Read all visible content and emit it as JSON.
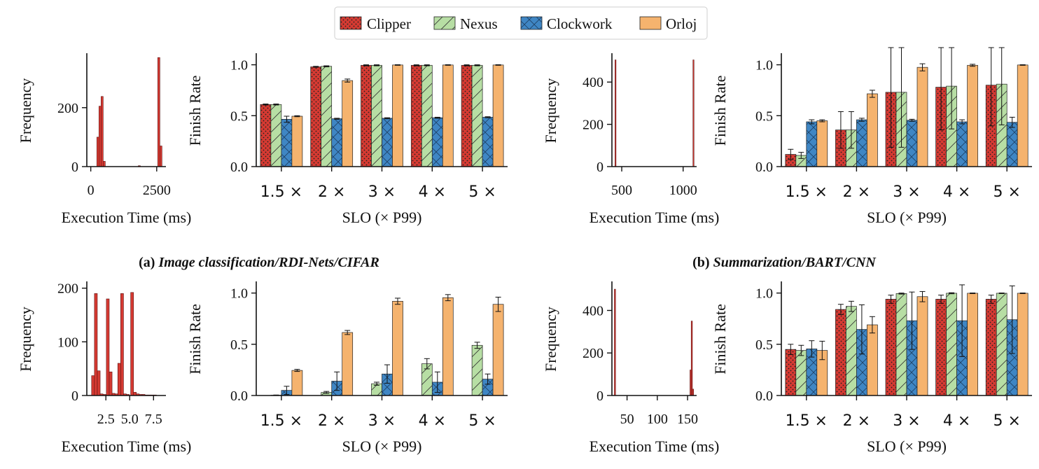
{
  "legend": {
    "items": [
      {
        "name": "Clipper",
        "color": "#d63a32",
        "pattern": "dots"
      },
      {
        "name": "Nexus",
        "color": "#b7dea4",
        "pattern": "slash"
      },
      {
        "name": "Clockwork",
        "color": "#3f86c4",
        "pattern": "cross"
      },
      {
        "name": "Orloj",
        "color": "#f5b36e",
        "pattern": "none"
      }
    ]
  },
  "captions": {
    "a": {
      "prefix": "(a) ",
      "text": "Image classification/RDI-Nets/CIFAR"
    },
    "b": {
      "prefix": "(b) ",
      "text": "Summarization/BART/CNN"
    }
  },
  "chart_data": [
    {
      "type": "bar",
      "panel": "a-hist",
      "ylabel": "Frequency",
      "xlabel": "Execution Time (ms)",
      "xlim": [
        -150,
        2850
      ],
      "ylim": [
        0,
        380
      ],
      "xticks": [
        0,
        2500
      ],
      "xtick_labels": [
        "0",
        "2500"
      ],
      "yticks": [
        0,
        200
      ],
      "bins": [
        [
          230,
          310,
          100
        ],
        [
          310,
          390,
          205
        ],
        [
          390,
          470,
          238
        ],
        [
          470,
          550,
          18
        ],
        [
          1800,
          1880,
          3
        ],
        [
          2540,
          2620,
          370
        ],
        [
          2620,
          2700,
          70
        ]
      ]
    },
    {
      "type": "bar",
      "panel": "a-finish",
      "ylabel": "Finish Rate",
      "xlabel": "SLO (× P99)",
      "categories": [
        "1.5 ×",
        "2 ×",
        "3 ×",
        "4 ×",
        "5 ×"
      ],
      "ylim": [
        0,
        1.1
      ],
      "yticks": [
        "0.0",
        "0.5",
        "1.0"
      ],
      "series": [
        {
          "name": "Clipper",
          "values": [
            0.61,
            0.98,
            0.995,
            0.995,
            0.995
          ],
          "err": [
            0.005,
            0.005,
            0.005,
            0.005,
            0.005
          ]
        },
        {
          "name": "Nexus",
          "values": [
            0.61,
            0.985,
            0.995,
            0.995,
            0.995
          ],
          "err": [
            0.005,
            0.005,
            0.005,
            0.005,
            0.005
          ]
        },
        {
          "name": "Clockwork",
          "values": [
            0.465,
            0.47,
            0.475,
            0.48,
            0.485
          ],
          "err": [
            0.03,
            0.005,
            0.005,
            0.005,
            0.005
          ]
        },
        {
          "name": "Orloj",
          "values": [
            0.495,
            0.845,
            0.998,
            0.998,
            0.998
          ],
          "err": [
            0.005,
            0.015,
            0.003,
            0.003,
            0.003
          ]
        }
      ]
    },
    {
      "type": "bar",
      "panel": "b-hist",
      "ylabel": "Frequency",
      "xlabel": "Execution Time (ms)",
      "xlim": [
        420,
        1110
      ],
      "ylim": [
        0,
        530
      ],
      "xticks": [
        500,
        1000
      ],
      "xtick_labels": [
        "500",
        "1000"
      ],
      "yticks": [
        0,
        200,
        400
      ],
      "bins": [
        [
          445,
          452,
          505
        ],
        [
          1080,
          1087,
          505
        ]
      ]
    },
    {
      "type": "bar",
      "panel": "b-finish",
      "ylabel": "Finish Rate",
      "xlabel": "SLO (× P99)",
      "categories": [
        "1.5 ×",
        "2 ×",
        "3 ×",
        "4 ×",
        "5 ×"
      ],
      "ylim": [
        0,
        1.1
      ],
      "yticks": [
        "0.0",
        "0.5",
        "1.0"
      ],
      "series": [
        {
          "name": "Clipper",
          "values": [
            0.12,
            0.36,
            0.73,
            0.78,
            0.8
          ],
          "err": [
            0.05,
            0.18,
            0.54,
            0.42,
            0.4
          ]
        },
        {
          "name": "Nexus",
          "values": [
            0.11,
            0.36,
            0.73,
            0.79,
            0.81
          ],
          "err": [
            0.03,
            0.18,
            0.54,
            0.42,
            0.4
          ]
        },
        {
          "name": "Clockwork",
          "values": [
            0.44,
            0.46,
            0.455,
            0.44,
            0.435
          ],
          "err": [
            0.02,
            0.015,
            0.01,
            0.02,
            0.05
          ]
        },
        {
          "name": "Orloj",
          "values": [
            0.45,
            0.715,
            0.975,
            0.995,
            0.998
          ],
          "err": [
            0.01,
            0.035,
            0.035,
            0.01,
            0.003
          ]
        }
      ]
    },
    {
      "type": "bar",
      "panel": "c-hist",
      "ylabel": "Frequency",
      "xlabel": "Execution Time (ms)",
      "xlim": [
        0.5,
        8.8
      ],
      "ylim": [
        0,
        210
      ],
      "xticks": [
        2.5,
        5.0,
        7.5
      ],
      "xtick_labels": [
        "2.5",
        "5.0",
        "7.5"
      ],
      "yticks": [
        0,
        100,
        200
      ],
      "bins": [
        [
          1.0,
          1.3,
          37
        ],
        [
          1.3,
          1.6,
          190
        ],
        [
          1.6,
          1.9,
          46
        ],
        [
          1.9,
          2.2,
          3
        ],
        [
          2.2,
          2.5,
          2
        ],
        [
          2.55,
          2.85,
          180
        ],
        [
          2.85,
          3.15,
          44
        ],
        [
          3.15,
          3.45,
          4
        ],
        [
          3.45,
          3.75,
          3
        ],
        [
          3.75,
          4.05,
          60
        ],
        [
          4.05,
          4.35,
          190
        ],
        [
          4.35,
          4.65,
          3
        ],
        [
          4.65,
          4.95,
          2
        ],
        [
          5.1,
          5.4,
          192
        ],
        [
          5.4,
          5.7,
          6
        ],
        [
          5.7,
          6.0,
          3
        ],
        [
          6.0,
          6.3,
          2
        ],
        [
          6.3,
          6.6,
          2
        ],
        [
          6.6,
          6.9,
          1
        ],
        [
          6.9,
          7.2,
          1
        ],
        [
          7.2,
          7.5,
          1
        ],
        [
          7.5,
          7.8,
          1
        ]
      ]
    },
    {
      "type": "bar",
      "panel": "c-finish",
      "ylabel": "Finish Rate",
      "xlabel": "SLO (× P99)",
      "categories": [
        "1.5 ×",
        "2 ×",
        "3 ×",
        "4 ×",
        "5 ×"
      ],
      "ylim": [
        0,
        1.1
      ],
      "yticks": [
        "0.0",
        "0.5",
        "1.0"
      ],
      "series": [
        {
          "name": "Clipper",
          "values": [
            0.0,
            0.0,
            0.0,
            0.0,
            0.0
          ],
          "err": [
            0,
            0,
            0,
            0,
            0
          ]
        },
        {
          "name": "Nexus",
          "values": [
            0.003,
            0.03,
            0.115,
            0.31,
            0.49
          ],
          "err": [
            0.002,
            0.01,
            0.015,
            0.05,
            0.03
          ]
        },
        {
          "name": "Clockwork",
          "values": [
            0.05,
            0.14,
            0.21,
            0.13,
            0.16
          ],
          "err": [
            0.04,
            0.09,
            0.09,
            0.1,
            0.05
          ]
        },
        {
          "name": "Orloj",
          "values": [
            0.245,
            0.615,
            0.92,
            0.955,
            0.89
          ],
          "err": [
            0.01,
            0.02,
            0.03,
            0.03,
            0.07
          ]
        }
      ]
    },
    {
      "type": "bar",
      "panel": "d-hist",
      "ylabel": "Frequency",
      "xlabel": "Execution Time (ms)",
      "xlim": [
        25,
        165
      ],
      "ylim": [
        0,
        530
      ],
      "xticks": [
        50,
        100,
        150
      ],
      "xtick_labels": [
        "50",
        "100",
        "150"
      ],
      "yticks": [
        0,
        200,
        400
      ],
      "bins": [
        [
          29,
          31,
          500
        ],
        [
          154,
          156,
          120
        ],
        [
          156,
          158,
          350
        ],
        [
          158,
          160,
          30
        ]
      ]
    },
    {
      "type": "bar",
      "panel": "d-finish",
      "ylabel": "Finish Rate",
      "xlabel": "SLO (× P99)",
      "categories": [
        "1.5 ×",
        "2 ×",
        "3 ×",
        "4 ×",
        "5 ×"
      ],
      "ylim": [
        0,
        1.1
      ],
      "yticks": [
        "0.0",
        "0.5",
        "1.0"
      ],
      "series": [
        {
          "name": "Clipper",
          "values": [
            0.45,
            0.84,
            0.94,
            0.94,
            0.94
          ],
          "err": [
            0.05,
            0.05,
            0.04,
            0.04,
            0.04
          ]
        },
        {
          "name": "Nexus",
          "values": [
            0.44,
            0.87,
            0.995,
            0.998,
            0.998
          ],
          "err": [
            0.05,
            0.05,
            0.005,
            0.005,
            0.003
          ]
        },
        {
          "name": "Clockwork",
          "values": [
            0.455,
            0.645,
            0.73,
            0.73,
            0.74
          ],
          "err": [
            0.08,
            0.24,
            0.28,
            0.35,
            0.33
          ]
        },
        {
          "name": "Orloj",
          "values": [
            0.44,
            0.69,
            0.965,
            0.998,
            0.998
          ],
          "err": [
            0.09,
            0.08,
            0.05,
            0.003,
            0.003
          ]
        }
      ]
    }
  ]
}
